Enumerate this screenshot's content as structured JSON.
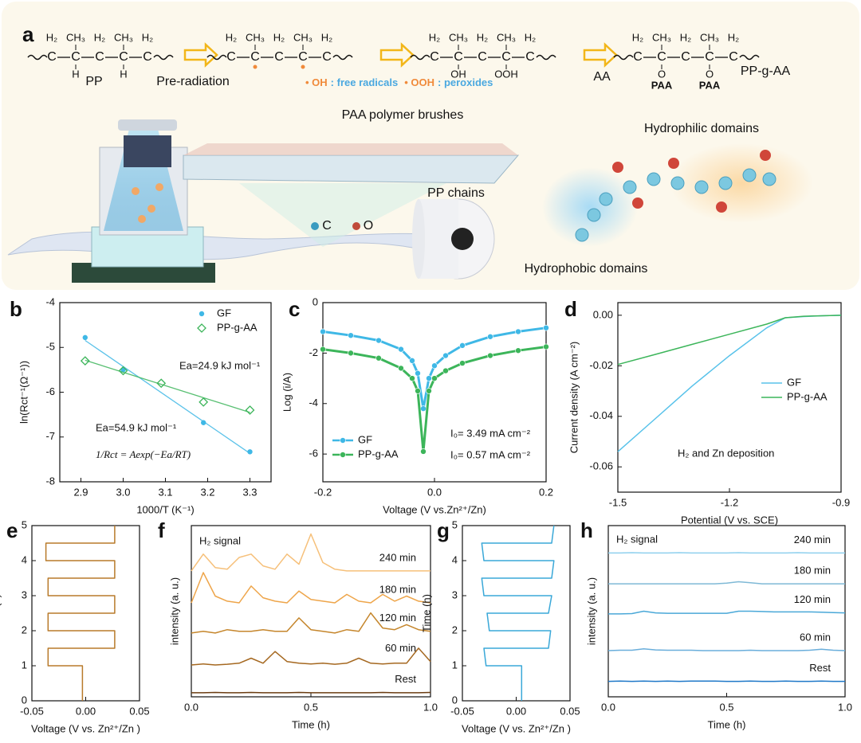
{
  "schematic": {
    "label": "a",
    "structures": [
      {
        "above": [
          "H₂",
          "CH₃",
          "H₂",
          "CH₃",
          "H₂"
        ],
        "main": [
          "C",
          "C",
          "C",
          "C",
          "C"
        ],
        "below": [
          null,
          "H",
          null,
          "H",
          null
        ]
      },
      {
        "above": [
          "H₂",
          "CH₃",
          "H₂",
          "CH₃",
          "H₂"
        ],
        "main": [
          "C",
          "C",
          "C",
          "C",
          "C"
        ]
      },
      {
        "above": [
          "H₂",
          "CH₃",
          "H₂",
          "CH₃",
          "H₂"
        ],
        "main": [
          "C",
          "C",
          "C",
          "C",
          "C"
        ],
        "below": [
          null,
          "OH",
          null,
          "OOH",
          null
        ]
      },
      {
        "above": [
          "H₂",
          "CH₃",
          "H₂",
          "CH₃",
          "H₂"
        ],
        "main": [
          "C",
          "C",
          "C",
          "C",
          "C"
        ],
        "below": [
          null,
          "O",
          null,
          "O",
          null
        ],
        "below2": [
          null,
          "PAA",
          null,
          "PAA",
          null
        ]
      }
    ],
    "steps": [
      "PP",
      "Pre-radiation",
      "AA",
      "PP-g-AA"
    ],
    "species": [
      {
        "symbol": "• OH",
        "desc": ": free radicals"
      },
      {
        "symbol": "• OOH",
        "desc": ": peroxides"
      }
    ],
    "callouts": {
      "brushes": "PAA polymer brushes",
      "chains": "PP chains",
      "carbon": "C",
      "oxygen": "O",
      "hydrophilic": "Hydrophilic domains",
      "hydrophobic": "Hydrophobic domains"
    }
  },
  "chart_data": [
    {
      "type": "scatter",
      "label": "b",
      "xlabel": "1000/T (K⁻¹)",
      "ylabel": "ln(Rct⁻¹(Ω⁻¹))",
      "xlim": [
        2.85,
        3.35
      ],
      "ylim": [
        -8,
        -4
      ],
      "xticks": [
        2.9,
        {
          "value": 3,
          "label": "3.0"
        },
        3.1,
        3.2,
        3.3
      ],
      "yticks": [
        -8,
        -7,
        -6,
        -5,
        -4
      ],
      "fit": "linear",
      "legend": "upper right",
      "series": [
        {
          "name": "GF",
          "color": "#3fb8e6",
          "marker": "circle",
          "x": [
            2.91,
            3.0,
            3.19,
            3.3
          ],
          "values": [
            -4.78,
            -5.5,
            -6.68,
            -7.33
          ]
        },
        {
          "name": "PP-g-AA",
          "color": "#3cb55a",
          "marker": "diamond",
          "x": [
            2.91,
            3.0,
            3.09,
            3.19,
            3.3
          ],
          "values": [
            -5.3,
            -5.52,
            -5.8,
            -6.22,
            -6.4
          ]
        }
      ],
      "annotations": [
        {
          "text": "Ea=24.9 kJ mol⁻¹",
          "color": "#3cb55a"
        },
        {
          "text": "Ea=54.9 kJ mol⁻¹",
          "color": "#3fb8e6"
        },
        {
          "text": "1/Rct = Aexp(−Ea/RT)",
          "color": "#111"
        }
      ]
    },
    {
      "type": "line",
      "label": "c",
      "xlabel": "Voltage (V vs.Zn²⁺/Zn)",
      "ylabel": "Log (i/A)",
      "xlim": [
        -0.2,
        0.2
      ],
      "ylim": [
        -7.1,
        0
      ],
      "xticks": [
        -0.2,
        {
          "value": 0,
          "label": "0.0"
        },
        0.2
      ],
      "yticks": [
        0,
        -2,
        -4,
        -6
      ],
      "legend": "lower left",
      "x": [
        -0.2,
        -0.15,
        -0.1,
        -0.06,
        -0.04,
        -0.03,
        -0.02,
        -0.01,
        0,
        0.02,
        0.05,
        0.1,
        0.15,
        0.2
      ],
      "series": [
        {
          "name": "GF",
          "color": "#3fb8e6",
          "marker": "circle",
          "values": [
            -1.15,
            -1.3,
            -1.5,
            -1.85,
            -2.3,
            -2.8,
            -4.2,
            -3.0,
            -2.5,
            -2.1,
            -1.7,
            -1.35,
            -1.15,
            -1.0
          ]
        },
        {
          "name": "PP-g-AA",
          "color": "#3cb55a",
          "marker": "circle",
          "values": [
            -1.85,
            -2.0,
            -2.2,
            -2.6,
            -3.0,
            -3.5,
            -5.9,
            -3.5,
            -3.0,
            -2.7,
            -2.4,
            -2.1,
            -1.9,
            -1.75
          ]
        }
      ],
      "annotations": [
        {
          "text": "I₀= 3.49 mA cm⁻²",
          "color": "#3fb8e6"
        },
        {
          "text": "I₀= 0.57 mA cm⁻²",
          "color": "#3cb55a"
        }
      ]
    },
    {
      "type": "line",
      "label": "d",
      "xlabel": "Potential (V vs. SCE)",
      "ylabel": "Current density (A cm⁻²)",
      "xlim": [
        -1.5,
        -0.9
      ],
      "ylim": [
        -0.07,
        0.005
      ],
      "xticks": [
        -1.5,
        -1.2,
        -0.9
      ],
      "yticks": [
        -0.06,
        -0.04,
        -0.02,
        {
          "value": 0,
          "label": "0.00"
        }
      ],
      "legend": "center right",
      "x": [
        -1.5,
        -1.4,
        -1.3,
        -1.2,
        -1.1,
        -1.05,
        -1.0,
        -0.95,
        -0.9
      ],
      "series": [
        {
          "name": "GF",
          "color": "#58c2ea",
          "values": [
            -0.054,
            -0.041,
            -0.028,
            -0.016,
            -0.005,
            -0.001,
            -0.0005,
            -0.0002,
            0
          ]
        },
        {
          "name": "PP-g-AA",
          "color": "#3cb55a",
          "values": [
            -0.0195,
            -0.0155,
            -0.0115,
            -0.0075,
            -0.0035,
            -0.001,
            -0.0004,
            -0.0002,
            0
          ]
        }
      ],
      "annotations": [
        {
          "text": "H₂ and Zn deposition",
          "color": "#f0b060"
        }
      ]
    },
    {
      "type": "line",
      "label": "e",
      "xlabel": "Voltage (V vs. Zn²⁺/Zn )",
      "ylabel": "Time (h)",
      "xlim": [
        -0.05,
        0.05
      ],
      "ylim": [
        0,
        5
      ],
      "xticks": [
        -0.05,
        {
          "value": 0,
          "label": "0.00"
        },
        0.05
      ],
      "yticks": [
        0,
        1,
        2,
        3,
        4,
        5
      ],
      "series": [
        {
          "color": "#b87a2a",
          "x": [
            -0.003,
            -0.003,
            -0.035,
            -0.035,
            0.027,
            0.027,
            -0.035,
            -0.035,
            0.027,
            0.027,
            -0.035,
            -0.035,
            0.027,
            0.027,
            -0.037,
            -0.037,
            0.027,
            0.027
          ],
          "values": [
            0,
            1.0,
            1.0,
            1.5,
            1.5,
            2.0,
            2.0,
            2.5,
            2.5,
            3.0,
            3.0,
            3.5,
            3.5,
            4.0,
            4.0,
            4.5,
            4.5,
            5.0
          ]
        }
      ]
    },
    {
      "type": "line",
      "label": "f",
      "xlabel": "Time (h)",
      "ylabel": "intensity (a. u.)",
      "xlim": [
        0,
        1
      ],
      "ylim": [
        0,
        5.1
      ],
      "xticks": [
        {
          "value": 0,
          "label": "0.0"
        },
        0.5,
        {
          "value": 1,
          "label": "1.0"
        }
      ],
      "series_labels": "inline",
      "annotations": [
        {
          "text": "H₂ signal",
          "color": "#111"
        }
      ],
      "x": [
        0,
        0.05,
        0.1,
        0.15,
        0.2,
        0.25,
        0.3,
        0.35,
        0.4,
        0.45,
        0.5,
        0.55,
        0.6,
        0.65,
        0.7,
        0.75,
        0.8,
        0.85,
        0.9,
        0.95,
        1.0
      ],
      "series": [
        {
          "name": "240 min",
          "color": "#f6c07a",
          "values": [
            3.75,
            4.25,
            3.85,
            3.8,
            4.15,
            4.25,
            3.9,
            3.8,
            4.25,
            3.95,
            4.85,
            4.0,
            3.8,
            3.75,
            3.75,
            3.75,
            3.75,
            3.75,
            3.75,
            3.75,
            3.75
          ]
        },
        {
          "name": "180 min",
          "color": "#eea54a",
          "values": [
            2.8,
            3.7,
            3.0,
            2.85,
            2.8,
            3.3,
            2.95,
            2.85,
            2.8,
            3.15,
            2.9,
            2.85,
            2.8,
            3.05,
            2.85,
            2.8,
            3.05,
            2.85,
            3.0,
            2.85,
            2.8
          ]
        },
        {
          "name": "120 min",
          "color": "#c5862c",
          "values": [
            1.9,
            1.95,
            1.9,
            2.0,
            1.95,
            1.95,
            2.0,
            1.95,
            1.95,
            2.35,
            2.0,
            1.95,
            1.9,
            2.0,
            1.95,
            2.5,
            2.05,
            2.0,
            2.15,
            2.0,
            1.95
          ]
        },
        {
          "name": "60 min",
          "color": "#a56820",
          "values": [
            0.95,
            0.98,
            0.95,
            0.97,
            1.0,
            1.15,
            1.0,
            1.35,
            1.05,
            1.0,
            0.98,
            1.0,
            0.97,
            1.0,
            1.15,
            1.0,
            0.98,
            1.0,
            1.0,
            1.45,
            1.05
          ]
        },
        {
          "name": "Rest",
          "color": "#6b3d12",
          "values": [
            0.12,
            0.12,
            0.13,
            0.12,
            0.12,
            0.13,
            0.12,
            0.12,
            0.12,
            0.13,
            0.12,
            0.12,
            0.12,
            0.12,
            0.12,
            0.12,
            0.13,
            0.12,
            0.12,
            0.12,
            0.13
          ]
        }
      ]
    },
    {
      "type": "line",
      "label": "g",
      "xlabel": "Voltage (V vs. Zn²⁺/Zn )",
      "ylabel": "Time (h)",
      "xlim": [
        -0.05,
        0.05
      ],
      "ylim": [
        0,
        5
      ],
      "xticks": [
        -0.05,
        {
          "value": 0,
          "label": "0.00"
        },
        0.05
      ],
      "yticks": [
        0,
        1,
        2,
        3,
        4,
        5
      ],
      "series": [
        {
          "color": "#3aa8d8",
          "x": [
            0.005,
            0.005,
            -0.028,
            -0.03,
            0.03,
            0.032,
            -0.025,
            -0.027,
            0.03,
            0.033,
            -0.03,
            -0.032,
            0.033,
            0.035,
            -0.03,
            -0.032,
            0.033,
            0.035
          ],
          "values": [
            0,
            1.0,
            1.0,
            1.5,
            1.5,
            2.0,
            2.0,
            2.5,
            2.5,
            3.0,
            3.0,
            3.5,
            3.5,
            4.0,
            4.0,
            4.5,
            4.5,
            5.0
          ]
        }
      ]
    },
    {
      "type": "line",
      "label": "h",
      "xlabel": "Time (h)",
      "ylabel": "intensity (a. u.)",
      "xlim": [
        0,
        1
      ],
      "ylim": [
        0,
        5
      ],
      "xticks": [
        {
          "value": 0,
          "label": "0.0"
        },
        0.5,
        {
          "value": 1,
          "label": "1.0"
        }
      ],
      "series_labels": "inline",
      "annotations": [
        {
          "text": "H₂ signal",
          "color": "#111"
        }
      ],
      "x": [
        0,
        0.05,
        0.1,
        0.15,
        0.2,
        0.25,
        0.3,
        0.35,
        0.4,
        0.45,
        0.5,
        0.55,
        0.6,
        0.65,
        0.7,
        0.75,
        0.8,
        0.85,
        0.9,
        0.95,
        1.0
      ],
      "series": [
        {
          "name": "240 min",
          "color": "#8fd0ee",
          "values": [
            4.2,
            4.2,
            4.21,
            4.2,
            4.2,
            4.2,
            4.21,
            4.2,
            4.2,
            4.2,
            4.2,
            4.21,
            4.2,
            4.2,
            4.2,
            4.2,
            4.21,
            4.2,
            4.2,
            4.2,
            4.2
          ]
        },
        {
          "name": "180 min",
          "color": "#7fb9d6",
          "values": [
            3.3,
            3.3,
            3.3,
            3.3,
            3.3,
            3.3,
            3.3,
            3.3,
            3.3,
            3.3,
            3.32,
            3.36,
            3.33,
            3.3,
            3.3,
            3.3,
            3.3,
            3.3,
            3.3,
            3.3,
            3.3
          ]
        },
        {
          "name": "120 min",
          "color": "#4aa8d8",
          "values": [
            2.42,
            2.42,
            2.43,
            2.5,
            2.45,
            2.44,
            2.44,
            2.44,
            2.44,
            2.44,
            2.44,
            2.5,
            2.5,
            2.49,
            2.48,
            2.48,
            2.48,
            2.48,
            2.47,
            2.46,
            2.45
          ]
        },
        {
          "name": "60 min",
          "color": "#6aaedb",
          "values": [
            1.35,
            1.36,
            1.36,
            1.4,
            1.37,
            1.36,
            1.36,
            1.36,
            1.35,
            1.35,
            1.35,
            1.35,
            1.36,
            1.35,
            1.35,
            1.35,
            1.35,
            1.36,
            1.39,
            1.36,
            1.35
          ]
        },
        {
          "name": "Rest",
          "color": "#1f78c8",
          "values": [
            0.45,
            0.46,
            0.45,
            0.46,
            0.45,
            0.46,
            0.45,
            0.46,
            0.46,
            0.46,
            0.45,
            0.45,
            0.46,
            0.45,
            0.45,
            0.46,
            0.45,
            0.45,
            0.46,
            0.45,
            0.45
          ]
        }
      ]
    }
  ]
}
